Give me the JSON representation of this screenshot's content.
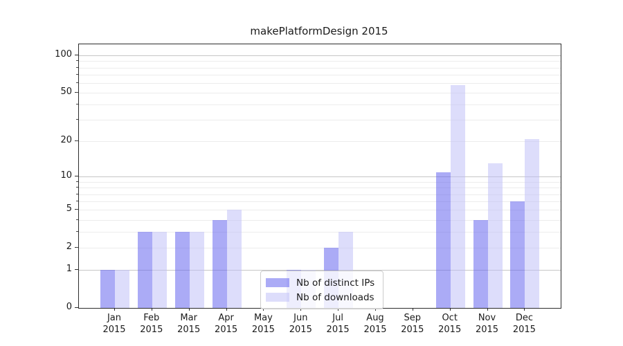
{
  "chart_data": {
    "type": "bar",
    "title": "makePlatformDesign 2015",
    "categories": [
      "Jan 2015",
      "Feb 2015",
      "Mar 2015",
      "Apr 2015",
      "May 2015",
      "Jun 2015",
      "Jul 2015",
      "Aug 2015",
      "Sep 2015",
      "Oct 2015",
      "Nov 2015",
      "Dec 2015"
    ],
    "series": [
      {
        "name": "Nb of distinct IPs",
        "values": [
          1,
          3,
          3,
          4,
          0,
          1,
          2,
          0,
          0,
          11,
          4,
          6
        ],
        "color": "rgba(102,102,238,0.55)"
      },
      {
        "name": "Nb of downloads",
        "values": [
          1,
          3,
          3,
          5,
          0,
          1,
          3,
          0,
          0,
          58,
          13,
          21
        ],
        "color": "rgba(187,187,247,0.5)"
      }
    ],
    "xlabel": "",
    "ylabel": "",
    "yscale": "log10(1+v)",
    "ylim": [
      0,
      123
    ],
    "yticks": [
      0,
      1,
      2,
      5,
      10,
      20,
      50,
      100
    ],
    "ygrid_major": [
      1,
      10,
      100
    ],
    "ygrid_minor": [
      2,
      3,
      4,
      5,
      6,
      7,
      8,
      9,
      20,
      30,
      40,
      50,
      60,
      70,
      80,
      90
    ],
    "grid": "horizontal",
    "legend_position": "bottom-center"
  }
}
